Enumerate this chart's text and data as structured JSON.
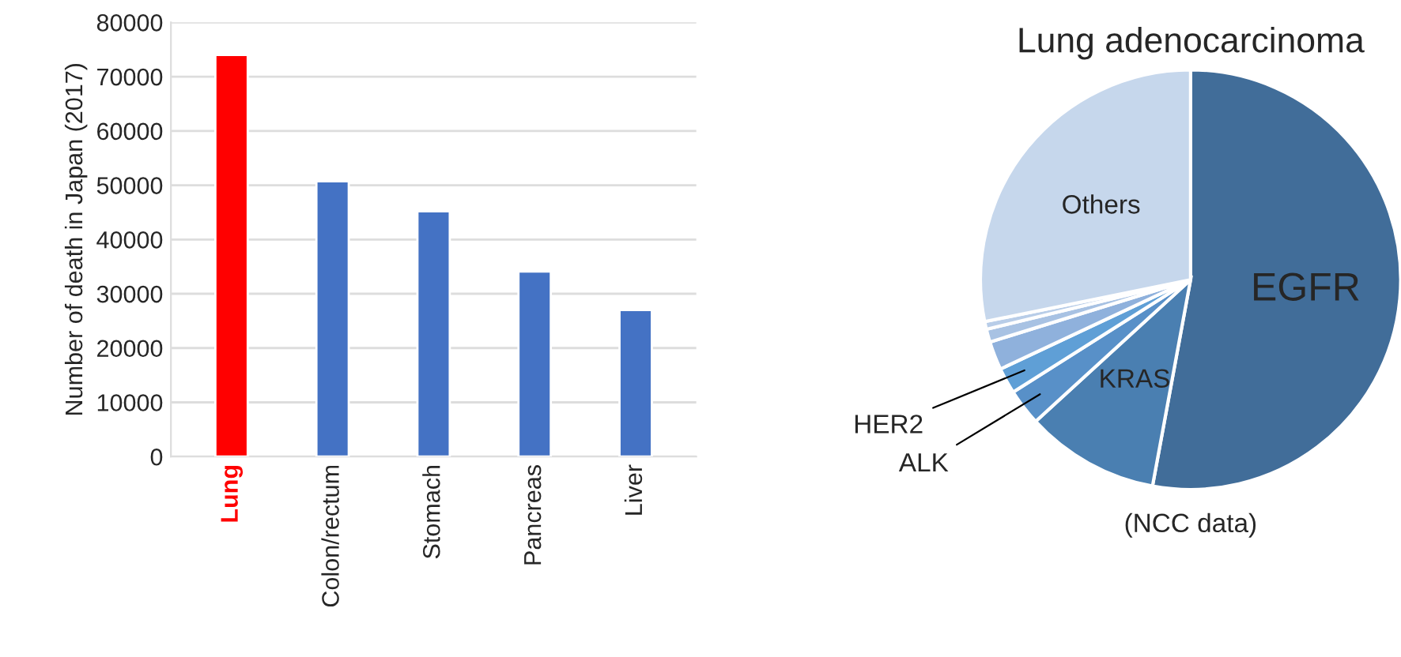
{
  "chart_data": [
    {
      "type": "bar",
      "ylabel": "Number of death in Japan (2017)",
      "categories": [
        "Lung",
        "Colon/rectum",
        "Stomach",
        "Pancreas",
        "Liver"
      ],
      "values": [
        74000,
        50700,
        45200,
        34100,
        27000
      ],
      "colors": [
        "#ff0000",
        "#4472c4",
        "#4472c4",
        "#4472c4",
        "#4472c4"
      ],
      "ylim": [
        0,
        80000
      ],
      "yticks": [
        0,
        10000,
        20000,
        30000,
        40000,
        50000,
        60000,
        70000,
        80000
      ],
      "grid": "y"
    },
    {
      "type": "pie",
      "title": "Lung adenocarcinoma",
      "categories": [
        "EGFR",
        "KRAS",
        "ALK",
        "HER2",
        null,
        null,
        null,
        "Others"
      ],
      "values": [
        52.9,
        10.3,
        2.8,
        2.0,
        2.2,
        1.0,
        0.6,
        28.2
      ],
      "colors": [
        "#416d99",
        "#4a7fb1",
        "#5890c8",
        "#5f9fd6",
        "#8fb1dc",
        "#a8c2e3",
        "#b8cde8",
        "#c6d7ec"
      ],
      "annotations": [
        "(NCC data)"
      ]
    }
  ]
}
